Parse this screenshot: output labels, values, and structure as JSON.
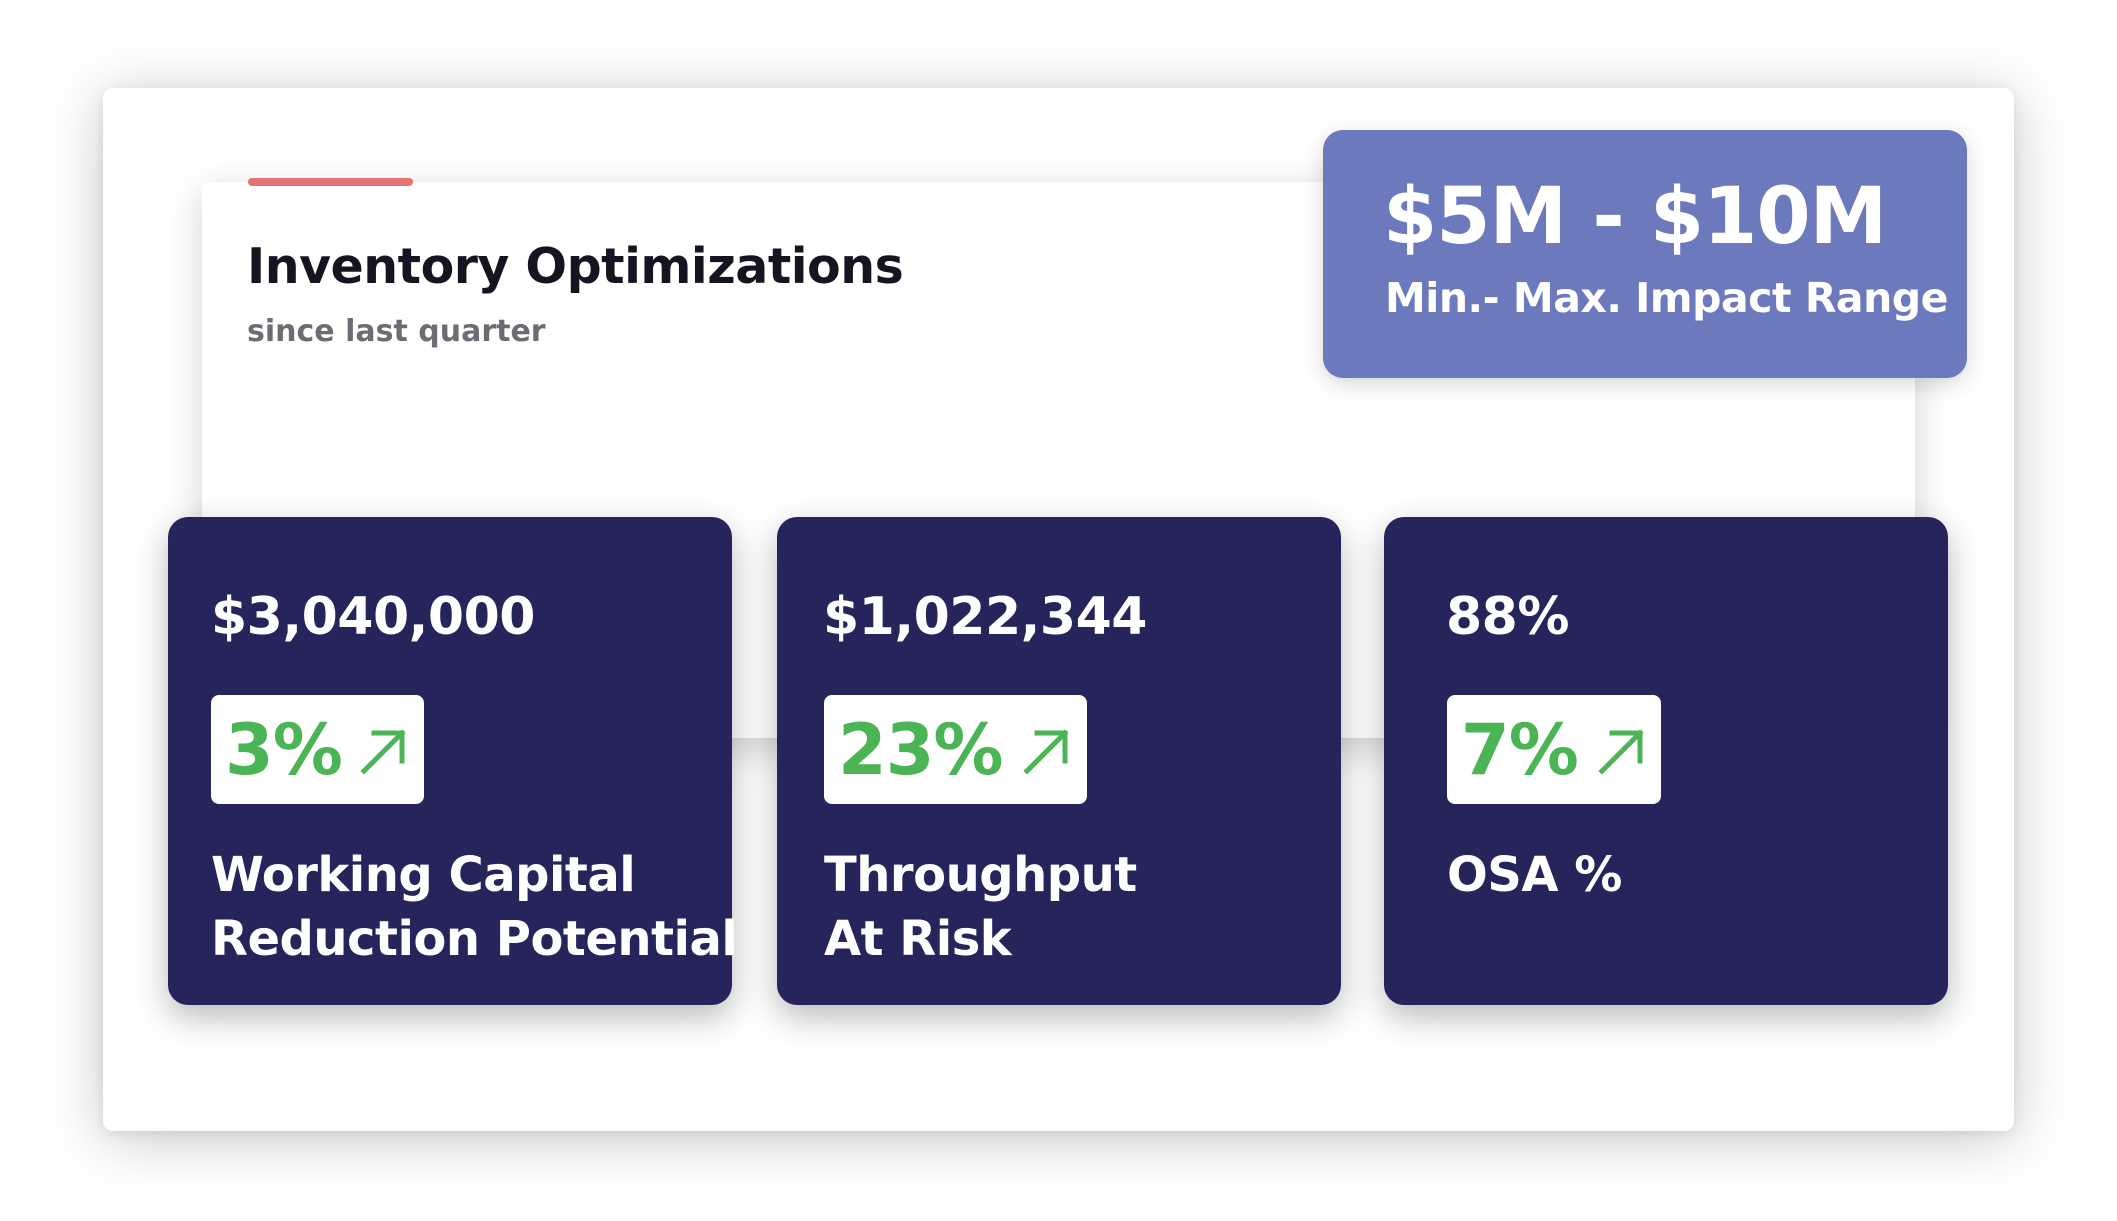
{
  "colors": {
    "accent_bar": "#e57373",
    "impact_background": "#6c79bd",
    "card_background": "#25245b",
    "positive_change": "#4bb454"
  },
  "panel": {
    "title": "Inventory Optimizations",
    "subtitle": "since last quarter"
  },
  "impact": {
    "value": "$5M - $10M",
    "label": "Min.- Max. Impact Range"
  },
  "metrics": [
    {
      "value": "$3,040,000",
      "change": "3%",
      "change_icon": "arrow-up-right-icon",
      "label_lines": [
        "Working Capital",
        "Reduction Potential"
      ]
    },
    {
      "value": "$1,022,344",
      "change": "23%",
      "change_icon": "arrow-up-right-icon",
      "label_lines": [
        "Throughput",
        "At Risk"
      ]
    },
    {
      "value": "88%",
      "change": "7%",
      "change_icon": "arrow-up-right-icon",
      "label_lines": [
        "OSA %"
      ]
    }
  ]
}
